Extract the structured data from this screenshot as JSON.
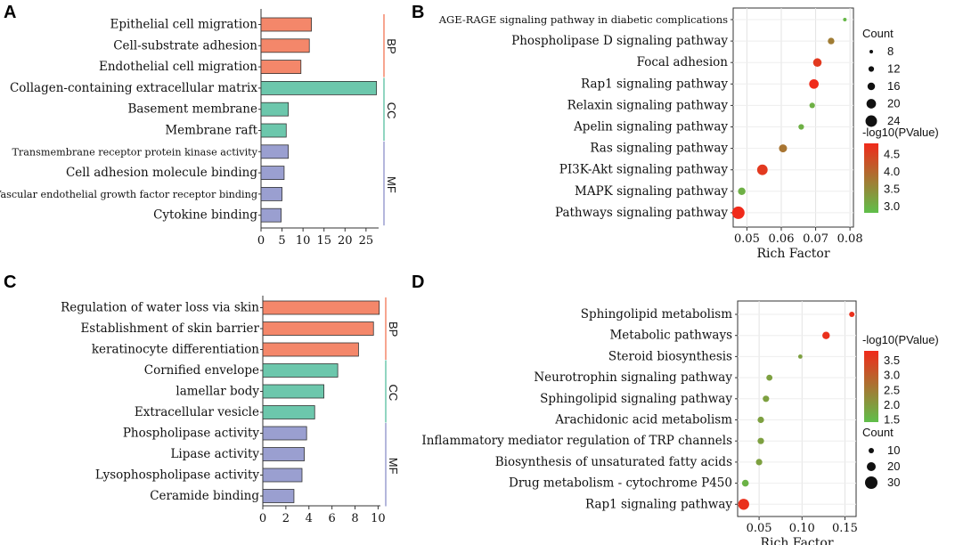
{
  "figure": {
    "panels": [
      "A",
      "B",
      "C",
      "D"
    ]
  },
  "chart_data": [
    {
      "panel": "A",
      "type": "bar",
      "orientation": "horizontal",
      "categories": [
        "Epithelial cell migration",
        "Cell-substrate adhesion",
        "Endothelial cell migration",
        "Collagen-containing extracellular matrix",
        "Basement membrane",
        "Membrane raft",
        "Transmembrane receptor protein kinase activity",
        "Cell adhesion molecule binding",
        "Vascular endothelial growth factor receptor binding",
        "Cytokine binding"
      ],
      "values": [
        12,
        11.5,
        9.5,
        27.5,
        6.5,
        6,
        6.5,
        5.5,
        5,
        4.8
      ],
      "groups": [
        {
          "name": "BP",
          "color": "#f4876a",
          "count": 3
        },
        {
          "name": "CC",
          "color": "#6cc7ac",
          "count": 3
        },
        {
          "name": "MF",
          "color": "#9a9fd0",
          "count": 4
        }
      ],
      "xticks": [
        "0",
        "5",
        "10",
        "15",
        "20",
        "25"
      ],
      "xlim": [
        0,
        28
      ]
    },
    {
      "panel": "B",
      "type": "scatter",
      "categories": [
        "AGE-RAGE signaling pathway in diabetic complications",
        "Phospholipase D signaling pathway",
        "Focal adhesion",
        "Rap1 signaling pathway",
        "Relaxin signaling pathway",
        "Apelin signaling pathway",
        "Ras signaling pathway",
        "PI3K-Akt signaling pathway",
        "MAPK signaling pathway",
        "Pathways signaling pathway"
      ],
      "x": [
        0.0785,
        0.0745,
        0.0705,
        0.0695,
        0.069,
        0.0658,
        0.0605,
        0.0545,
        0.0485,
        0.0475
      ],
      "count": [
        8,
        14,
        18,
        20,
        12,
        12,
        17,
        22,
        16,
        26
      ],
      "color_value": [
        2.9,
        3.7,
        4.6,
        4.8,
        3.0,
        3.0,
        3.8,
        4.6,
        3.0,
        4.8
      ],
      "xlabel": "Rich Factor",
      "xticks": [
        "0.05",
        "0.06",
        "0.07",
        "0.08"
      ],
      "xlim": [
        0.046,
        0.081
      ],
      "size_legend": {
        "title": "Count",
        "labels": [
          "8",
          "12",
          "16",
          "20",
          "24"
        ]
      },
      "color_legend": {
        "title": "-log10(PValue)",
        "labels": [
          "4.5",
          "4.0",
          "3.5",
          "3.0"
        ],
        "range": [
          2.8,
          4.8
        ],
        "low_color": "#5fbf4a",
        "high_color": "#f02a1a"
      }
    },
    {
      "panel": "C",
      "type": "bar",
      "orientation": "horizontal",
      "categories": [
        "Regulation of water loss via skin",
        "Establishment of skin barrier",
        "keratinocyte differentiation",
        "Cornified envelope",
        "lamellar body",
        "Extracellular vesicle",
        "Phospholipase activity",
        "Lipase activity",
        "Lysophospholipase activity",
        "Ceramide binding"
      ],
      "values": [
        10.1,
        9.6,
        8.3,
        6.5,
        5.3,
        4.5,
        3.8,
        3.6,
        3.4,
        2.7
      ],
      "groups": [
        {
          "name": "BP",
          "color": "#f4876a",
          "count": 3
        },
        {
          "name": "CC",
          "color": "#6cc7ac",
          "count": 3
        },
        {
          "name": "MF",
          "color": "#9a9fd0",
          "count": 4
        }
      ],
      "xticks": [
        "0",
        "2",
        "4",
        "6",
        "8",
        "10"
      ],
      "xlim": [
        0,
        10.2
      ]
    },
    {
      "panel": "D",
      "type": "scatter",
      "categories": [
        "Sphingolipid metabolism",
        "Metabolic pathways",
        "Steroid biosynthesis",
        "Neurotrophin signaling pathway",
        "Sphingolipid signaling pathway",
        "Arachidonic acid metabolism",
        "Inflammatory mediator regulation of TRP channels",
        "Biosynthesis of unsaturated fatty acids",
        "Drug metabolism - cytochrome P450",
        "Rap1 signaling pathway"
      ],
      "x": [
        0.158,
        0.128,
        0.098,
        0.062,
        0.058,
        0.052,
        0.052,
        0.05,
        0.034,
        0.032
      ],
      "count": [
        10,
        16,
        7,
        12,
        13,
        13,
        13,
        13,
        14,
        26
      ],
      "color_value": [
        3.7,
        3.7,
        1.9,
        1.9,
        1.9,
        1.9,
        1.9,
        1.9,
        1.6,
        3.7
      ],
      "xlabel": "Rich Factor",
      "xticks": [
        "0.05",
        "0.10",
        "0.15"
      ],
      "xlim": [
        0.025,
        0.163
      ],
      "size_legend": {
        "title": "Count",
        "labels": [
          "10",
          "20",
          "30"
        ]
      },
      "color_legend": {
        "title": "-log10(PValue)",
        "labels": [
          "3.5",
          "3.0",
          "2.5",
          "2.0",
          "1.5"
        ],
        "range": [
          1.4,
          3.8
        ],
        "low_color": "#5fbf4a",
        "high_color": "#f02a1a"
      }
    }
  ]
}
